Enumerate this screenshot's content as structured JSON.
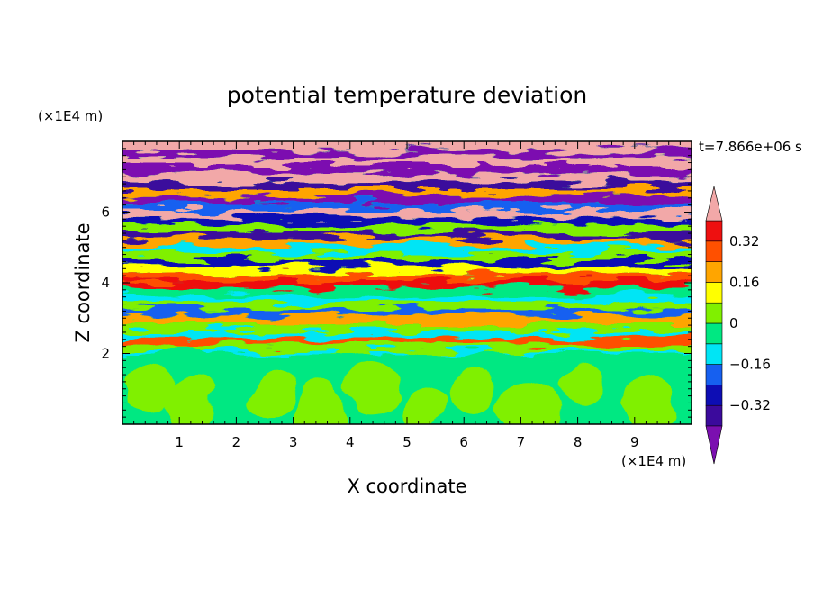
{
  "chart_data": {
    "type": "heatmap",
    "title": "potential temperature deviation",
    "xlabel": "X coordinate",
    "ylabel": "Z coordinate",
    "x_unit": "(×1E4 m)",
    "y_unit": "(×1E4 m)",
    "time_label": "t=7.866e+06 s",
    "xlim": [
      0,
      10
    ],
    "ylim": [
      0,
      8
    ],
    "x_ticks": [
      1,
      2,
      3,
      4,
      5,
      6,
      7,
      8,
      9
    ],
    "y_ticks": [
      2,
      4,
      6
    ],
    "colorbar": {
      "levels": [
        -0.4,
        -0.32,
        -0.24,
        -0.16,
        -0.08,
        0,
        0.08,
        0.16,
        0.24,
        0.32,
        0.4
      ],
      "labeled_levels": [
        0.32,
        0.16,
        0,
        -0.16,
        -0.32
      ],
      "labels": [
        "0.32",
        "0.16",
        "0",
        "−0.16",
        "−0.32"
      ],
      "colors": [
        "#7b0fb0",
        "#3b0a9c",
        "#0d0db4",
        "#1660f0",
        "#00e5f5",
        "#00e882",
        "#80f000",
        "#ffff00",
        "#ffa500",
        "#ff5000",
        "#ee1010",
        "#f2a8a8"
      ],
      "extend": "both"
    },
    "bands": [
      {
        "z": 7.85,
        "level": 11
      },
      {
        "z": 7.65,
        "level": 0
      },
      {
        "z": 7.45,
        "level": 11
      },
      {
        "z": 7.2,
        "level": 0
      },
      {
        "z": 6.95,
        "level": 11
      },
      {
        "z": 6.75,
        "level": 1
      },
      {
        "z": 6.55,
        "level": 8
      },
      {
        "z": 6.35,
        "level": 0
      },
      {
        "z": 6.15,
        "level": 3
      },
      {
        "z": 5.95,
        "level": 11
      },
      {
        "z": 5.75,
        "level": 2
      },
      {
        "z": 5.55,
        "level": 6
      },
      {
        "z": 5.35,
        "level": 1
      },
      {
        "z": 5.15,
        "level": 8
      },
      {
        "z": 4.95,
        "level": 4
      },
      {
        "z": 4.75,
        "level": 6
      },
      {
        "z": 4.55,
        "level": 2
      },
      {
        "z": 4.35,
        "level": 7
      },
      {
        "z": 4.15,
        "level": 9
      },
      {
        "z": 3.95,
        "level": 10
      },
      {
        "z": 3.75,
        "level": 5
      },
      {
        "z": 3.55,
        "level": 4
      },
      {
        "z": 3.35,
        "level": 6
      },
      {
        "z": 3.15,
        "level": 3
      },
      {
        "z": 2.95,
        "level": 8
      },
      {
        "z": 2.75,
        "level": 6
      },
      {
        "z": 2.55,
        "level": 4
      },
      {
        "z": 2.35,
        "level": 9
      },
      {
        "z": 2.15,
        "level": 6
      },
      {
        "z": 1.98,
        "level": 4
      }
    ],
    "lower_layer": {
      "z_top": 1.95,
      "base_level": 5,
      "patch_level": 6
    }
  }
}
